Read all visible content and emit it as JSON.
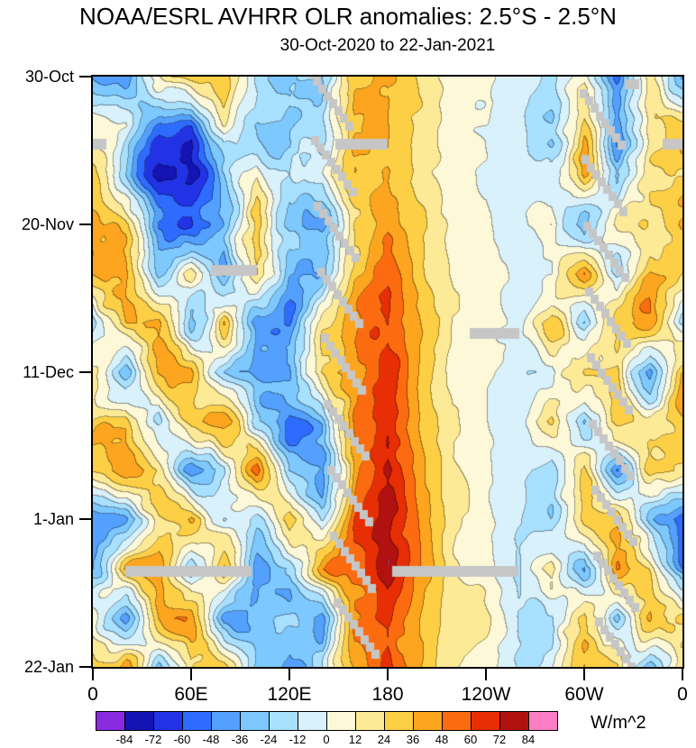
{
  "title": "NOAA/ESRL AVHRR OLR anomalies: 2.5°S - 2.5°N",
  "subtitle": "30-Oct-2020 to 22-Jan-2021",
  "colorbar": {
    "tick_labels": [
      "-84",
      "-72",
      "-60",
      "-48",
      "-36",
      "-24",
      "-12",
      "0",
      "12",
      "24",
      "36",
      "48",
      "60",
      "72",
      "84"
    ],
    "unit": "W/m^2"
  },
  "chart_data": {
    "type": "heatmap",
    "title": "NOAA/ESRL AVHRR OLR anomalies: 2.5°S - 2.5°N",
    "subtitle": "30-Oct-2020 to 22-Jan-2021",
    "units": "W/m^2",
    "x_axis": {
      "range": [
        0,
        360
      ],
      "ticks": [
        {
          "lon": 0,
          "label": "0"
        },
        {
          "lon": 60,
          "label": "60E"
        },
        {
          "lon": 120,
          "label": "120E"
        },
        {
          "lon": 180,
          "label": "180"
        },
        {
          "lon": 240,
          "label": "120W"
        },
        {
          "lon": 300,
          "label": "60W"
        },
        {
          "lon": 360,
          "label": "0"
        }
      ]
    },
    "y_axis": {
      "range": [
        0,
        84
      ],
      "ticks": [
        {
          "day": 0,
          "label": "30-Oct"
        },
        {
          "day": 21,
          "label": "20-Nov"
        },
        {
          "day": 42,
          "label": "11-Dec"
        },
        {
          "day": 63,
          "label": "1-Jan"
        },
        {
          "day": 84,
          "label": "22-Jan"
        }
      ]
    },
    "levels": [
      -84,
      -72,
      -60,
      -48,
      -36,
      -24,
      -12,
      0,
      12,
      24,
      36,
      48,
      60,
      72,
      84
    ],
    "colors": [
      "#8a2be2",
      "#1414b4",
      "#2233e6",
      "#2e6bff",
      "#53a0ff",
      "#7cc8ff",
      "#a8e0ff",
      "#d8f1fb",
      "#fdf8d8",
      "#fdea96",
      "#fdcf45",
      "#fda51e",
      "#fc6b10",
      "#e82e04",
      "#b21111",
      "#fb7dc3"
    ],
    "grid": {
      "lons": [
        0,
        20,
        40,
        60,
        80,
        100,
        120,
        140,
        160,
        180,
        200,
        220,
        240,
        260,
        280,
        300,
        320,
        340,
        360
      ],
      "days": [
        0,
        7,
        14,
        21,
        28,
        35,
        42,
        49,
        56,
        63,
        70,
        77,
        84
      ],
      "values": [
        [
          -20,
          -30,
          30,
          35,
          25,
          -20,
          -35,
          -35,
          25,
          35,
          22,
          8,
          4,
          -4,
          -12,
          25,
          -30,
          35,
          -20
        ],
        [
          20,
          15,
          -45,
          -55,
          25,
          -25,
          -40,
          -30,
          30,
          40,
          25,
          8,
          4,
          -6,
          -15,
          30,
          -35,
          25,
          20
        ],
        [
          25,
          -15,
          -65,
          -60,
          -30,
          20,
          -30,
          -20,
          35,
          45,
          25,
          8,
          3,
          -8,
          -18,
          30,
          -35,
          30,
          25
        ],
        [
          30,
          20,
          -40,
          -65,
          -35,
          30,
          -35,
          -45,
          25,
          50,
          28,
          10,
          4,
          -8,
          15,
          -35,
          25,
          35,
          30
        ],
        [
          20,
          35,
          -25,
          25,
          -40,
          30,
          -25,
          -30,
          40,
          55,
          30,
          10,
          5,
          -10,
          -20,
          30,
          -25,
          30,
          20
        ],
        [
          -20,
          30,
          40,
          -30,
          30,
          -35,
          -45,
          25,
          45,
          60,
          32,
          12,
          5,
          -8,
          20,
          -40,
          30,
          35,
          -20
        ],
        [
          30,
          -30,
          25,
          35,
          -25,
          -40,
          -30,
          35,
          50,
          65,
          35,
          12,
          6,
          -12,
          -30,
          25,
          35,
          -30,
          30
        ],
        [
          35,
          45,
          -25,
          30,
          35,
          -30,
          -50,
          -35,
          45,
          70,
          38,
          14,
          6,
          -10,
          20,
          -30,
          40,
          30,
          35
        ],
        [
          40,
          55,
          35,
          -35,
          -25,
          35,
          -40,
          -45,
          40,
          75,
          40,
          15,
          7,
          -14,
          -25,
          35,
          -35,
          40,
          40
        ],
        [
          -50,
          -40,
          30,
          40,
          -30,
          -35,
          30,
          -30,
          50,
          78,
          42,
          15,
          7,
          -12,
          -30,
          30,
          40,
          -25,
          -50
        ],
        [
          -35,
          30,
          45,
          -25,
          35,
          -45,
          -35,
          30,
          55,
          80,
          45,
          16,
          8,
          -15,
          25,
          -35,
          35,
          30,
          -35
        ],
        [
          25,
          -30,
          35,
          40,
          -35,
          -30,
          -40,
          -50,
          45,
          75,
          42,
          15,
          7,
          -12,
          -25,
          30,
          -30,
          35,
          25
        ],
        [
          30,
          35,
          -25,
          30,
          40,
          -35,
          -55,
          -40,
          35,
          70,
          40,
          14,
          6,
          -10,
          -20,
          35,
          30,
          -25,
          30
        ]
      ]
    },
    "noise": {
      "scales": [
        85,
        36,
        15
      ],
      "amps": [
        17,
        11,
        7
      ],
      "seeds": [
        3.1,
        7.7,
        13.9
      ]
    },
    "gaps": {
      "color": "#c6c6c6",
      "bars": [
        {
          "day": 8.8,
          "dday": 1.5,
          "lon0": 148,
          "lon1": 180
        },
        {
          "day": 8.8,
          "dday": 1.5,
          "lon0": 0,
          "lon1": 8
        },
        {
          "day": 8.8,
          "dday": 1.5,
          "lon0": 348,
          "lon1": 360
        },
        {
          "day": 0.4,
          "dday": 1.4,
          "lon0": 325,
          "lon1": 334
        },
        {
          "day": 26.8,
          "dday": 1.5,
          "lon0": 72,
          "lon1": 100
        },
        {
          "day": 35.8,
          "dday": 1.5,
          "lon0": 230,
          "lon1": 260
        },
        {
          "day": 69.6,
          "dday": 1.6,
          "lon0": 20,
          "lon1": 97
        },
        {
          "day": 69.6,
          "dday": 1.6,
          "lon0": 183,
          "lon1": 260
        }
      ],
      "staircase_shape": {
        "n": 8,
        "dlon": 3.3,
        "dday": 1.05,
        "w": 5.2,
        "h": 1.25
      },
      "staircases": [
        {
          "lon0": 131,
          "day0": -1.0
        },
        {
          "lon0": 133,
          "day0": 8.4
        },
        {
          "lon0": 135,
          "day0": 17.8
        },
        {
          "lon0": 137,
          "day0": 27.2
        },
        {
          "lon0": 139,
          "day0": 36.6
        },
        {
          "lon0": 141,
          "day0": 46.0
        },
        {
          "lon0": 143,
          "day0": 55.4
        },
        {
          "lon0": 145,
          "day0": 64.8
        },
        {
          "lon0": 147,
          "day0": 74.2
        },
        {
          "lon0": 297.0,
          "day0": 1.8
        },
        {
          "lon0": 298.2,
          "day0": 11.2
        },
        {
          "lon0": 299.4,
          "day0": 20.6
        },
        {
          "lon0": 300.6,
          "day0": 30.0
        },
        {
          "lon0": 301.8,
          "day0": 39.4
        },
        {
          "lon0": 303.0,
          "day0": 48.8
        },
        {
          "lon0": 304.2,
          "day0": 58.2
        },
        {
          "lon0": 305.4,
          "day0": 67.6
        },
        {
          "lon0": 306.6,
          "day0": 77.0
        }
      ]
    }
  }
}
